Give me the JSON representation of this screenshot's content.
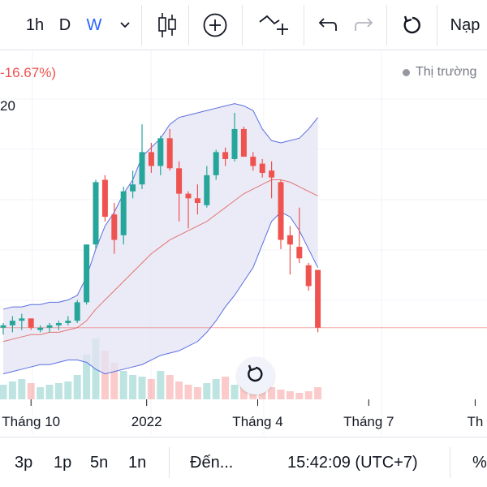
{
  "toolbar": {
    "interval_1h": "1h",
    "interval_d": "D",
    "interval_w": "W",
    "deposit_label": "Nạp"
  },
  "legend": {
    "change": "-16.67%)",
    "period": "20"
  },
  "market_status": "Thị trường",
  "time_axis": [
    "Tháng 10",
    "2022",
    "Tháng 4",
    "Tháng 7",
    "Th"
  ],
  "bottom": {
    "range_3p": "3p",
    "range_1p": "1p",
    "range_5n": "5n",
    "range_1n": "1n",
    "goto_label": "Đến...",
    "clock": "15:42:09 (UTC+7)",
    "percent_label": "%"
  },
  "colors": {
    "up": "#26a69a",
    "down": "#ef5350",
    "band_line": "#5b6ee1",
    "band_fill": "#e3e4f3",
    "middle_line": "#e57373",
    "accent": "#2962ff"
  },
  "chart_data": {
    "type": "candlestick",
    "indicator": "bollinger_bands",
    "candles": [
      {
        "o": 44,
        "h": 46,
        "l": 41,
        "c": 45
      },
      {
        "o": 45,
        "h": 49,
        "l": 42,
        "c": 47
      },
      {
        "o": 47,
        "h": 50,
        "l": 43,
        "c": 48
      },
      {
        "o": 48,
        "h": 48,
        "l": 43,
        "c": 44
      },
      {
        "o": 43,
        "h": 45,
        "l": 42,
        "c": 44
      },
      {
        "o": 44,
        "h": 46,
        "l": 42,
        "c": 45
      },
      {
        "o": 45,
        "h": 47,
        "l": 43,
        "c": 46
      },
      {
        "o": 46,
        "h": 49,
        "l": 45,
        "c": 47
      },
      {
        "o": 47,
        "h": 56,
        "l": 46,
        "c": 55
      },
      {
        "o": 55,
        "h": 80,
        "l": 54,
        "c": 80
      },
      {
        "o": 80,
        "h": 108,
        "l": 78,
        "c": 107
      },
      {
        "o": 108,
        "h": 110,
        "l": 90,
        "c": 92
      },
      {
        "o": 93,
        "h": 98,
        "l": 76,
        "c": 82
      },
      {
        "o": 84,
        "h": 105,
        "l": 80,
        "c": 103
      },
      {
        "o": 103,
        "h": 112,
        "l": 100,
        "c": 106
      },
      {
        "o": 106,
        "h": 132,
        "l": 104,
        "c": 120
      },
      {
        "o": 120,
        "h": 124,
        "l": 111,
        "c": 114
      },
      {
        "o": 114,
        "h": 127,
        "l": 110,
        "c": 126
      },
      {
        "o": 126,
        "h": 130,
        "l": 112,
        "c": 113
      },
      {
        "o": 113,
        "h": 116,
        "l": 90,
        "c": 102
      },
      {
        "o": 102,
        "h": 103,
        "l": 87,
        "c": 100
      },
      {
        "o": 100,
        "h": 106,
        "l": 93,
        "c": 98
      },
      {
        "o": 97,
        "h": 114,
        "l": 96,
        "c": 110
      },
      {
        "o": 110,
        "h": 121,
        "l": 108,
        "c": 120
      },
      {
        "o": 120,
        "h": 122,
        "l": 114,
        "c": 117
      },
      {
        "o": 117,
        "h": 137,
        "l": 116,
        "c": 130
      },
      {
        "o": 130,
        "h": 131,
        "l": 118,
        "c": 118
      },
      {
        "o": 118,
        "h": 120,
        "l": 112,
        "c": 114
      },
      {
        "o": 115,
        "h": 117,
        "l": 109,
        "c": 111
      },
      {
        "o": 112,
        "h": 116,
        "l": 100,
        "c": 109
      },
      {
        "o": 107,
        "h": 108,
        "l": 78,
        "c": 82
      },
      {
        "o": 84,
        "h": 88,
        "l": 67,
        "c": 80
      },
      {
        "o": 79,
        "h": 96,
        "l": 72,
        "c": 74
      },
      {
        "o": 71,
        "h": 72,
        "l": 60,
        "c": 62
      },
      {
        "o": 69,
        "h": 69,
        "l": 42,
        "c": 44
      }
    ],
    "volume": [
      0.18,
      0.22,
      0.25,
      0.2,
      0.15,
      0.18,
      0.2,
      0.22,
      0.3,
      0.55,
      0.75,
      0.6,
      0.45,
      0.35,
      0.3,
      0.28,
      0.25,
      0.35,
      0.3,
      0.22,
      0.18,
      0.15,
      0.2,
      0.25,
      0.28,
      0.18,
      0.35,
      0.3,
      0.2,
      0.15,
      0.12,
      0.1,
      0.08,
      0.1,
      0.15
    ],
    "bands": {
      "upper": [
        52,
        53,
        53,
        54,
        54,
        55,
        55,
        56,
        58,
        66,
        78,
        88,
        94,
        102,
        108,
        118,
        122,
        126,
        132,
        135,
        136,
        137,
        138,
        139,
        140,
        141,
        140,
        138,
        130,
        125,
        124,
        125,
        126,
        130,
        135
      ],
      "middle": [
        38,
        39,
        40,
        41,
        41,
        42,
        42,
        43,
        44,
        47,
        52,
        56,
        60,
        64,
        68,
        72,
        76,
        79,
        82,
        84,
        86,
        88,
        90,
        93,
        96,
        99,
        102,
        104,
        106,
        108,
        108,
        107,
        105,
        103,
        101
      ],
      "lower": [
        24,
        25,
        26,
        27,
        28,
        28,
        29,
        30,
        30,
        29,
        26,
        24,
        25,
        26,
        27,
        28,
        30,
        32,
        33,
        34,
        36,
        38,
        42,
        47,
        53,
        58,
        64,
        70,
        80,
        90,
        94,
        92,
        86,
        78,
        70
      ]
    },
    "last_price_line": 44,
    "price_range": [
      20,
      150
    ],
    "x_ticks": [
      {
        "label": "Tháng 10",
        "index": 3
      },
      {
        "label": "2022",
        "index": 15.5
      },
      {
        "label": "Tháng 4",
        "index": 27.5
      },
      {
        "label": "Tháng 7",
        "index": 39.5
      },
      {
        "label": "Th",
        "index": 51
      }
    ]
  }
}
